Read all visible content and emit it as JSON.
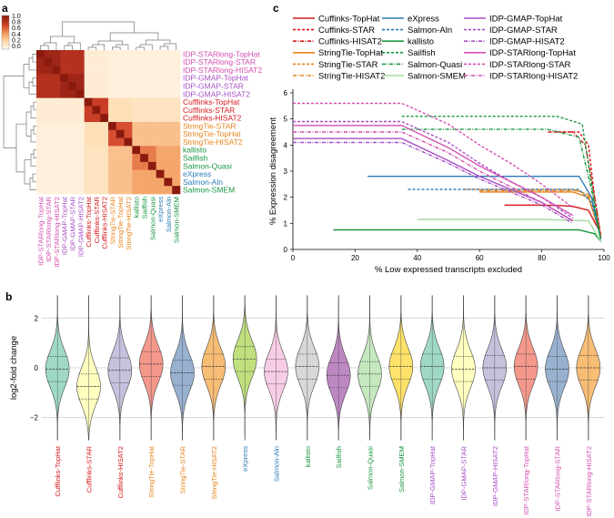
{
  "panels": {
    "a": "a",
    "b": "b",
    "c": "c"
  },
  "colors": {
    "cufflinks": "#d7191c",
    "stringtie": "#e6841c",
    "express": "#2c7bb6",
    "salmon_aln": "#2c7bb6",
    "kallisto": "#1a9641",
    "sailfish": "#1a9641",
    "salmon": "#1a9641",
    "idp_gmap": "#a84fc6",
    "idp_starlong": "#d34fb0",
    "heat_low": "#fff5e6",
    "heat_high": "#8b1a0e"
  },
  "heatmap": {
    "colorbar_ticks": [
      "1.0",
      "0.8",
      "0.6",
      "0.4",
      "0.2",
      "0.0"
    ],
    "rows": [
      {
        "label": "IDP-STARlong-TopHat",
        "group": "idp_starlong"
      },
      {
        "label": "IDP-STARlong-STAR",
        "group": "idp_starlong"
      },
      {
        "label": "IDP-STARlong-HISAT2",
        "group": "idp_starlong"
      },
      {
        "label": "IDP-GMAP-TopHat",
        "group": "idp_gmap"
      },
      {
        "label": "IDP-GMAP-STAR",
        "group": "idp_gmap"
      },
      {
        "label": "IDP-GMAP-HISAT2",
        "group": "idp_gmap"
      },
      {
        "label": "Cufflinks-TopHat",
        "group": "cufflinks"
      },
      {
        "label": "Cufflinks-STAR",
        "group": "cufflinks"
      },
      {
        "label": "Cufflinks-HISAT2",
        "group": "cufflinks"
      },
      {
        "label": "StringTie-STAR",
        "group": "stringtie"
      },
      {
        "label": "StringTie-TopHat",
        "group": "stringtie"
      },
      {
        "label": "StringTie-HISAT2",
        "group": "stringtie"
      },
      {
        "label": "kallisto",
        "group": "kallisto"
      },
      {
        "label": "Sailfish",
        "group": "sailfish"
      },
      {
        "label": "Salmon-Quasi",
        "group": "salmon"
      },
      {
        "label": "eXpress",
        "group": "express"
      },
      {
        "label": "Salmon-Aln",
        "group": "salmon_aln"
      },
      {
        "label": "Salmon-SMEM",
        "group": "salmon"
      }
    ]
  },
  "chart_data": [
    {
      "panel": "c",
      "type": "line",
      "title": "",
      "xlabel": "% Low expressed transcripts excluded",
      "ylabel": "% Expression disagreement",
      "xlim": [
        0,
        100
      ],
      "ylim": [
        0,
        6
      ],
      "xticks": [
        "0",
        "20",
        "40",
        "60",
        "80",
        "100"
      ],
      "yticks": [
        "0",
        "1",
        "2",
        "3",
        "4",
        "5",
        "6"
      ],
      "series": [
        {
          "name": "Cuffinks-TopHat",
          "style": "solid",
          "group": "cufflinks",
          "x": [
            68,
            80,
            86,
            90,
            95,
            99
          ],
          "y": [
            1.7,
            1.7,
            1.68,
            1.65,
            1.5,
            0.6
          ]
        },
        {
          "name": "Cuffinks-STAR",
          "style": "dashed",
          "group": "cufflinks",
          "x": [
            84,
            92,
            95,
            97,
            99
          ],
          "y": [
            4.5,
            4.5,
            4.0,
            2.0,
            0.5
          ]
        },
        {
          "name": "Cuffinks-HISAT2",
          "style": "dashdot",
          "group": "cufflinks",
          "x": [
            82,
            90,
            94,
            97,
            99
          ],
          "y": [
            4.5,
            4.5,
            4.0,
            2.0,
            0.5
          ]
        },
        {
          "name": "StringTie-TopHat",
          "style": "solid",
          "group": "stringtie",
          "x": [
            60,
            70,
            90,
            95,
            99
          ],
          "y": [
            2.2,
            2.2,
            2.2,
            2.0,
            0.5
          ]
        },
        {
          "name": "StringTie-STAR",
          "style": "dashed",
          "group": "stringtie",
          "x": [
            55,
            70,
            90,
            95,
            99
          ],
          "y": [
            2.3,
            2.3,
            2.3,
            2.1,
            0.5
          ]
        },
        {
          "name": "StringTie-HISAT2",
          "style": "dashdot",
          "group": "stringtie",
          "x": [
            60,
            80,
            92,
            96,
            99
          ],
          "y": [
            2.25,
            2.25,
            2.25,
            2.0,
            0.5
          ]
        },
        {
          "name": "eXpress",
          "style": "solid",
          "group": "express",
          "x": [
            24,
            60,
            92,
            96,
            99
          ],
          "y": [
            2.8,
            2.8,
            2.8,
            2.0,
            0.4
          ]
        },
        {
          "name": "Salmon-Aln",
          "style": "dashed",
          "group": "salmon_aln",
          "x": [
            37,
            60,
            92,
            96,
            99
          ],
          "y": [
            2.3,
            2.3,
            2.3,
            1.8,
            0.4
          ]
        },
        {
          "name": "kallisto",
          "style": "solid",
          "group": "kallisto",
          "x": [
            13,
            50,
            92,
            97,
            99
          ],
          "y": [
            0.75,
            0.75,
            0.75,
            0.6,
            0.3
          ]
        },
        {
          "name": "Sailfish",
          "style": "dashed",
          "group": "sailfish",
          "x": [
            35,
            85,
            93,
            96,
            99
          ],
          "y": [
            5.1,
            5.1,
            4.8,
            2.5,
            0.3
          ]
        },
        {
          "name": "Salmon-Quasi",
          "style": "dashdot",
          "group": "salmon",
          "x": [
            35,
            82,
            92,
            96,
            99
          ],
          "y": [
            4.6,
            4.6,
            4.3,
            2.3,
            0.3
          ]
        },
        {
          "name": "Salmon-SMEM",
          "style": "solid",
          "group": "salmon_light",
          "x": [
            40,
            80,
            95,
            99
          ],
          "y": [
            1.15,
            1.15,
            1.1,
            0.3
          ]
        },
        {
          "name": "IDP-GMAP-TopHat",
          "style": "solid",
          "group": "idp_gmap",
          "x": [
            0,
            35,
            50,
            60,
            70,
            80,
            90
          ],
          "y": [
            4.25,
            4.25,
            3.4,
            2.8,
            2.3,
            1.8,
            1.1
          ]
        },
        {
          "name": "IDP-GMAP-STAR",
          "style": "dashed",
          "group": "idp_gmap",
          "x": [
            0,
            35,
            50,
            60,
            70,
            80,
            90
          ],
          "y": [
            4.9,
            4.9,
            4.1,
            3.3,
            2.6,
            2.0,
            1.2
          ]
        },
        {
          "name": "IDP-GMAP-HISAT2",
          "style": "dashdot",
          "group": "idp_gmap",
          "x": [
            0,
            35,
            50,
            60,
            70,
            80,
            90
          ],
          "y": [
            4.1,
            4.1,
            3.3,
            2.7,
            2.2,
            1.7,
            1.0
          ]
        },
        {
          "name": "IDP-STARlong-TopHat",
          "style": "solid",
          "group": "idp_starlong",
          "x": [
            0,
            35,
            50,
            60,
            70,
            80,
            90
          ],
          "y": [
            4.75,
            4.75,
            3.9,
            3.2,
            2.6,
            2.0,
            1.3
          ]
        },
        {
          "name": "IDP-STARlong-STAR",
          "style": "dashed",
          "group": "idp_starlong",
          "x": [
            0,
            35,
            50,
            60,
            70,
            80,
            90
          ],
          "y": [
            5.6,
            5.6,
            4.8,
            4.0,
            3.3,
            2.5,
            1.6
          ]
        },
        {
          "name": "IDP-STARlong-HISAT2",
          "style": "dashdot",
          "group": "idp_starlong",
          "x": [
            0,
            35,
            50,
            60,
            70,
            80,
            90
          ],
          "y": [
            4.5,
            4.5,
            3.7,
            3.0,
            2.4,
            1.8,
            1.1
          ]
        }
      ]
    },
    {
      "panel": "b",
      "type": "violin",
      "title": "",
      "xlabel": "",
      "ylabel": "log2-fold change",
      "ylim": [
        -3,
        3
      ],
      "yticks": [
        "2",
        "0",
        "−2"
      ],
      "categories": [
        "Cufflinks-TopHat",
        "Cufflinks-STAR",
        "Cufflinks-HISAT2",
        "StringTie-TopHat",
        "StringTie-STAR",
        "StringTie-HISAT2",
        "eXpress",
        "Salmon-Aln",
        "kallisto",
        "Sailfish",
        "Salmon-Quasi",
        "Salmon-SMEM",
        "IDP-GMAP-TopHat",
        "IDP-GMAP-STAR",
        "IDP-GMAP-HISAT2",
        "IDP-STARlong-TopHat",
        "IDP-STARlong-STAR",
        "IDP-STARlong-HISAT2"
      ],
      "groups": [
        "cufflinks",
        "cufflinks",
        "cufflinks",
        "stringtie",
        "stringtie",
        "stringtie",
        "express",
        "salmon_aln",
        "kallisto",
        "sailfish",
        "salmon",
        "salmon",
        "idp_gmap",
        "idp_gmap",
        "idp_gmap",
        "idp_starlong",
        "idp_starlong",
        "idp_starlong"
      ],
      "fills": [
        "#9fd8c6",
        "#ffffbf",
        "#c6c2dd",
        "#f4988c",
        "#98b1cf",
        "#f7bd75",
        "#bfe07d",
        "#f7cde6",
        "#d8d8d8",
        "#bd88c1",
        "#c5e8bf",
        "#ffe26a",
        "#9fd8c6",
        "#ffffbf",
        "#c6c2dd",
        "#f4988c",
        "#98b1cf",
        "#f7bd75"
      ],
      "medians": [
        -0.05,
        -0.75,
        -0.1,
        0.15,
        -0.2,
        0.05,
        0.35,
        -0.15,
        0.05,
        -0.3,
        -0.25,
        0.05,
        0.05,
        -0.05,
        0.0,
        0.05,
        -0.05,
        0.0
      ]
    }
  ]
}
